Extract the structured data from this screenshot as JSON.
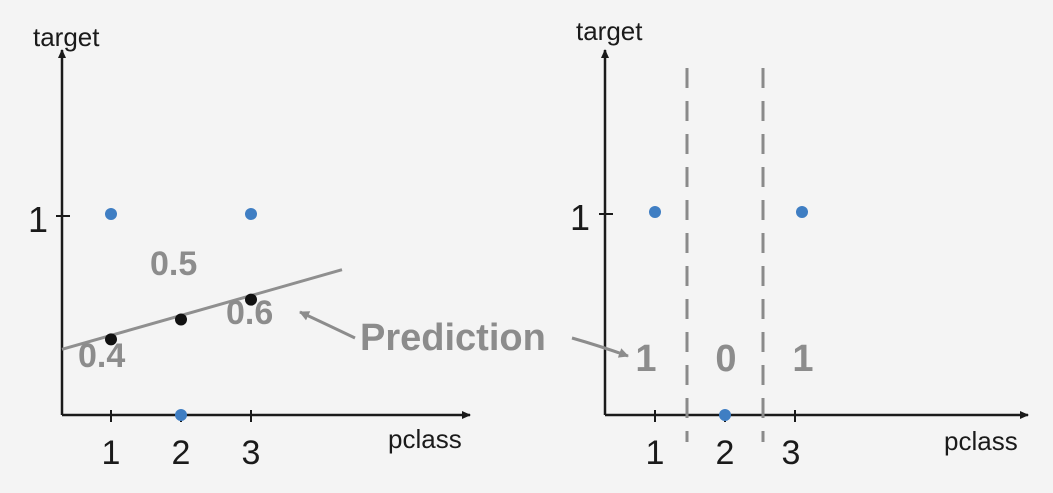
{
  "colors": {
    "background": "#f4f4f4",
    "axis": "#1a1a1a",
    "point_blue": "#3f7ec3",
    "point_black": "#111111",
    "line_gray": "#8f8f8f",
    "label_gray": "#8c8c8c",
    "divider_gray": "#8a8a8a"
  },
  "chart_data": [
    {
      "type": "scatter",
      "title": "",
      "xlabel": "pclass",
      "ylabel": "target",
      "x_ticks": [
        "1",
        "2",
        "3"
      ],
      "y_ticks": [
        "1"
      ],
      "xlim": [
        0.3,
        4.2
      ],
      "ylim": [
        0,
        1.5
      ],
      "series": [
        {
          "points": [
            {
              "x": 1,
              "y": 1
            },
            {
              "x": 2,
              "y": 0
            },
            {
              "x": 3,
              "y": 1
            }
          ]
        },
        {
          "points": [
            {
              "x": 1,
              "y": 0.4
            },
            {
              "x": 2,
              "y": 0.5
            },
            {
              "x": 3,
              "y": 0.6
            }
          ]
        }
      ],
      "fit_line": {
        "slope": 0.1,
        "intercept": 0.3,
        "x_range": [
          0.3,
          4.3
        ]
      },
      "point_labels": [
        {
          "text": "0.4",
          "x": 1,
          "y": 0.4
        },
        {
          "text": "0.5",
          "x": 2,
          "y": 0.5
        },
        {
          "text": "0.6",
          "x": 3,
          "y": 0.6
        }
      ]
    },
    {
      "type": "scatter",
      "title": "",
      "xlabel": "pclass",
      "ylabel": "target",
      "x_ticks": [
        "1",
        "2",
        "3"
      ],
      "y_ticks": [
        "1"
      ],
      "xlim": [
        0.3,
        4.5
      ],
      "ylim": [
        0,
        1.5
      ],
      "series": [
        {
          "points": [
            {
              "x": 1,
              "y": 1
            },
            {
              "x": 2,
              "y": 0
            },
            {
              "x": 3,
              "y": 1
            }
          ]
        }
      ],
      "split_lines_x": [
        1.5,
        2.5
      ],
      "region_labels": [
        {
          "text": "1",
          "x": 1
        },
        {
          "text": "0",
          "x": 2
        },
        {
          "text": "1",
          "x": 3
        }
      ]
    }
  ],
  "annotation": {
    "text": "Prediction"
  }
}
